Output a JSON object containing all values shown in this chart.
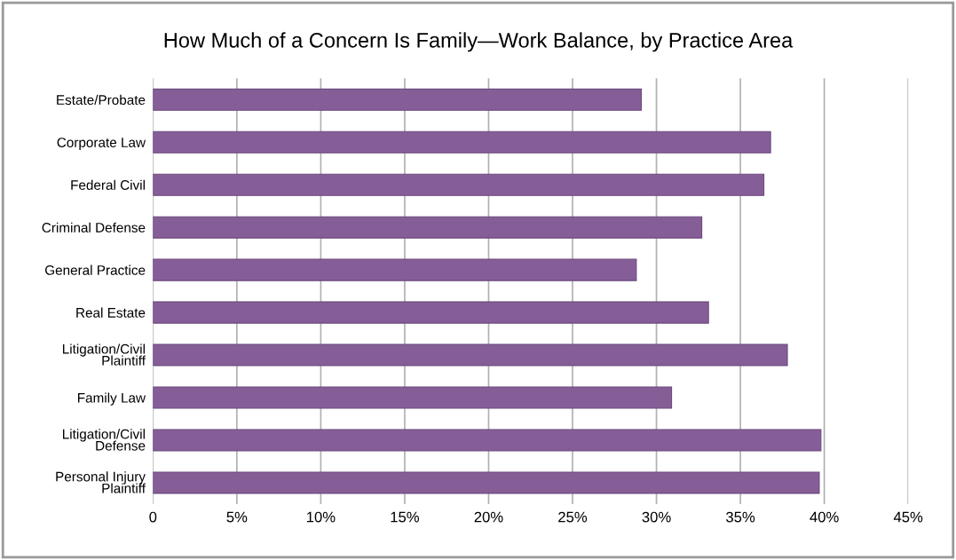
{
  "chart_data": {
    "type": "bar",
    "orientation": "horizontal",
    "title": "How Much of a Concern Is Family—Work Balance, by Practice Area",
    "categories": [
      "Estate/Probate",
      "Corporate Law",
      "Federal Civil",
      "Criminal Defense",
      "General Practice",
      "Real Estate",
      "Litigation/Civil\nPlaintiff",
      "Family Law",
      "Litigation/Civil\nDefense",
      "Personal Injury\nPlaintiff"
    ],
    "values": [
      29.1,
      36.8,
      36.4,
      32.7,
      28.8,
      33.1,
      37.8,
      30.9,
      39.8,
      39.7
    ],
    "color": "#855e97",
    "xlim": [
      0,
      45
    ],
    "xticks": [
      0,
      {
        "value": 5,
        "label": "5%"
      },
      {
        "value": 10,
        "label": "10%"
      },
      {
        "value": 15,
        "label": "15%"
      },
      {
        "value": 20,
        "label": "20%"
      },
      {
        "value": 25,
        "label": "25%"
      },
      {
        "value": 30,
        "label": "30%"
      },
      {
        "value": 35,
        "label": "35%"
      },
      {
        "value": 40,
        "label": "40%"
      },
      {
        "value": 45,
        "label": "45%"
      }
    ],
    "grid": "x"
  }
}
